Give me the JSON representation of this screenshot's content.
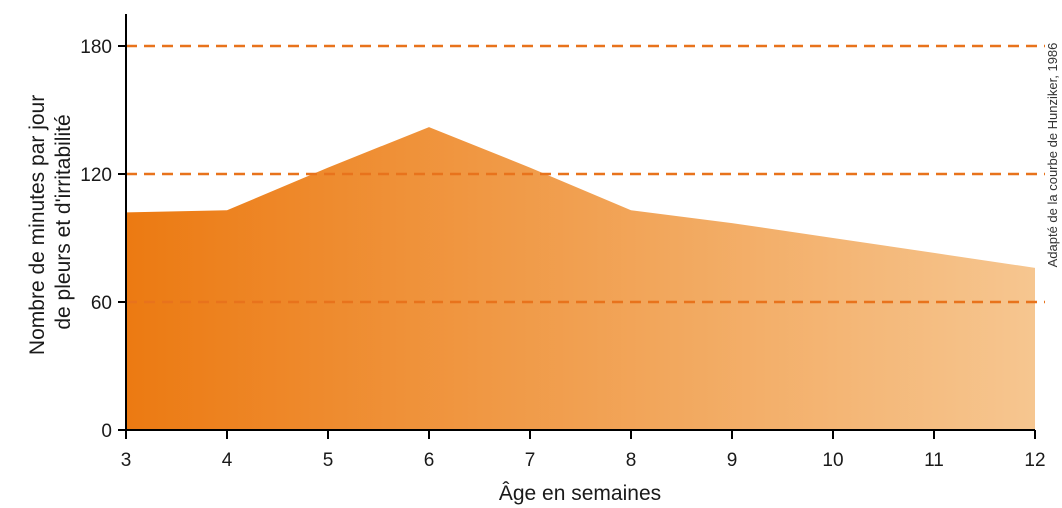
{
  "chart_data": {
    "type": "area",
    "x": [
      3,
      4,
      5,
      6,
      7,
      8,
      9,
      10,
      11,
      12
    ],
    "x_tick_labels": [
      "3",
      "4",
      "5",
      "6",
      "7",
      "8",
      "9",
      "10",
      "11",
      "12"
    ],
    "series": [
      {
        "values": [
          102,
          103,
          123,
          142,
          123,
          103,
          97,
          90,
          83,
          76
        ]
      }
    ],
    "y_ticks": [
      0,
      60,
      120,
      180
    ],
    "y_tick_labels": [
      "0",
      "60",
      "120",
      "180"
    ],
    "ylim": [
      0,
      200
    ],
    "xlim": [
      3,
      12
    ],
    "xlabel": "Âge en semaines",
    "ylabel_lines": [
      "Nombre de minutes par jour",
      "de pleurs et d'irritabilité"
    ],
    "credit": "Adapté de la courbe de Hunziker, 1986",
    "gridlines": {
      "values": [
        60,
        120,
        180
      ],
      "style": "dashed",
      "color": "#e8731c"
    },
    "fill_gradient": [
      "#ec7a12",
      "#f6c690"
    ],
    "grid": true,
    "legend": "none"
  }
}
